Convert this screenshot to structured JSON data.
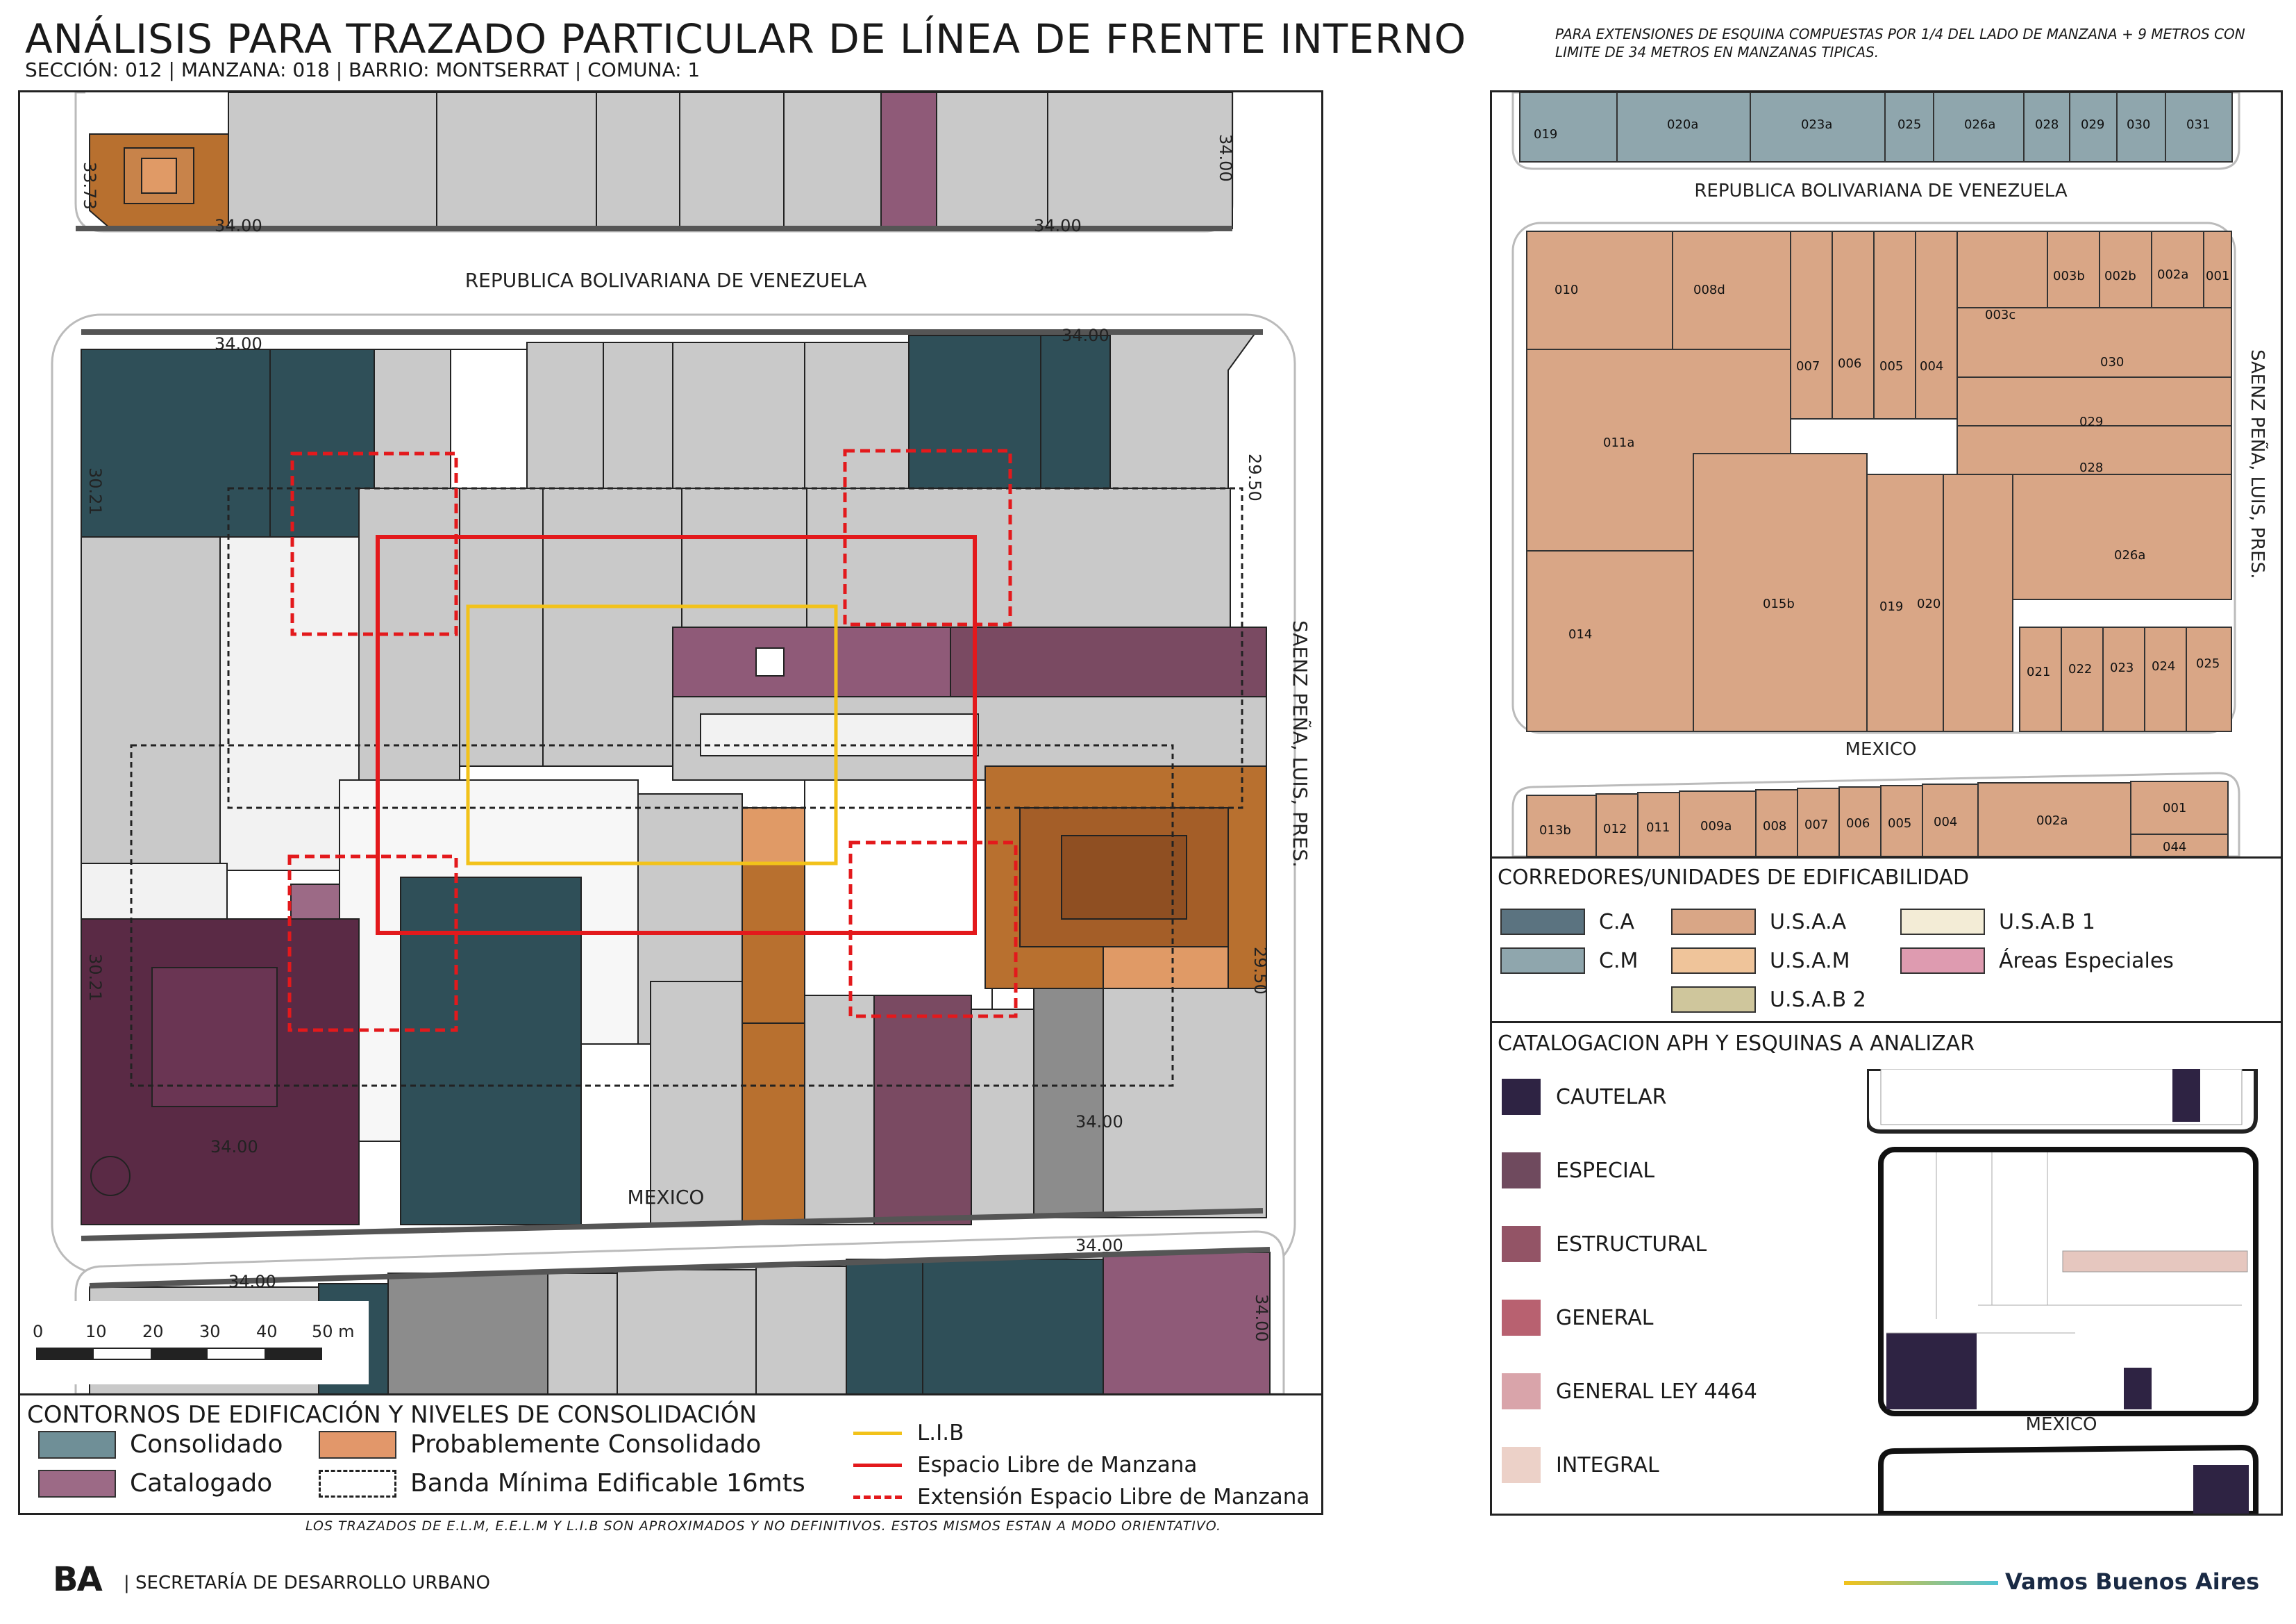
{
  "header": {
    "title": "ANÁLISIS PARA TRAZADO PARTICULAR DE LÍNEA DE FRENTE INTERNO",
    "subtitle": "SECCIÓN: 012 |  MANZANA: 018 | BARRIO: MONTSERRAT | COMUNA: 1",
    "note": "PARA EXTENSIONES DE ESQUINA COMPUESTAS POR 1/4 DEL LADO DE MANZANA + 9 METROS CON LIMITE DE 34 METROS EN MANZANAS TIPICAS."
  },
  "main_map": {
    "streets": {
      "top": "REPUBLICA BOLIVARIANA DE VENEZUELA",
      "bottom": "MEXICO",
      "right": "SAENZ PEÑA, LUIS, PRES."
    },
    "dimensions": {
      "top_block_left": "33.73",
      "top_block_bottom_left": "34.00",
      "top_block_bottom_right": "34.00",
      "top_block_right": "34.00",
      "main_top_left": "34.00",
      "main_top_right": "34.00",
      "main_left_upper": "30.21",
      "main_left_lower": "30.21",
      "main_right_upper": "29.50",
      "main_right_lower": "29.50",
      "main_bottom_left": "34.00",
      "main_bottom_right": "34.00",
      "bottom_block_top_left": "34.00",
      "bottom_block_top_right": "34.00",
      "bottom_block_right": "34.00"
    },
    "scale": {
      "labels": [
        "0",
        "10",
        "20",
        "30",
        "40",
        "50 m"
      ]
    }
  },
  "legend_left": {
    "title": "CONTORNOS DE EDIFICACIÓN Y NIVELES DE CONSOLIDACIÓN",
    "items": [
      {
        "label": "Consolidado",
        "color": "#6f8f97"
      },
      {
        "label": "Probablemente Consolidado",
        "color": "#e2976a"
      },
      {
        "label": "Catalogado",
        "color": "#9c6a86"
      },
      {
        "label": "Banda Mínima Edificable 16mts",
        "color": "#ffffff"
      }
    ],
    "lines": [
      {
        "label": "L.I.B",
        "color": "#f2c21a"
      },
      {
        "label": "Espacio Libre de Manzana",
        "color": "#e3191c"
      },
      {
        "label": "Extensión Espacio Libre de Manzana",
        "color": "#e3191c"
      }
    ]
  },
  "footer_note": "LOS TRAZADOS DE E.L.M, E.E.L.M Y L.I.B SON APROXIMADOS Y NO DEFINITIVOS. ESTOS MISMOS ESTAN A MODO ORIENTATIVO.",
  "right_map": {
    "streets": {
      "top": "REPUBLICA BOLIVARIANA DE VENEZUELA",
      "bottom": "MEXICO",
      "right": "SAENZ PEÑA, LUIS, PRES."
    },
    "top_parcels": [
      "019",
      "020a",
      "023a",
      "025",
      "026a",
      "028",
      "029",
      "030",
      "031"
    ],
    "main_parcels": [
      "010",
      "008d",
      "007",
      "006",
      "005",
      "004",
      "003c",
      "003b",
      "002b",
      "002a",
      "001",
      "030",
      "011a",
      "029",
      "028",
      "026a",
      "015b",
      "019",
      "020",
      "014",
      "021",
      "022",
      "023",
      "024",
      "025"
    ],
    "bottom_parcels": [
      "013b",
      "012",
      "011",
      "009a",
      "008",
      "007",
      "006",
      "005",
      "004",
      "002a",
      "001",
      "044"
    ]
  },
  "legend_corredores": {
    "title": "CORREDORES/UNIDADES DE EDIFICABILIDAD",
    "items": [
      {
        "label": "C.A",
        "color": "#5b7380"
      },
      {
        "label": "C.M",
        "color": "#8fa6ad"
      },
      {
        "label": "U.S.A.A",
        "color": "#d9a686"
      },
      {
        "label": "U.S.A.M",
        "color": "#efc49a"
      },
      {
        "label": "U.S.A.B 2",
        "color": "#cfc69c"
      },
      {
        "label": "U.S.A.B 1",
        "color": "#f3ecd6"
      },
      {
        "label": "Áreas Especiales",
        "color": "#de9bb0"
      }
    ]
  },
  "legend_catalog": {
    "title": "CATALOGACION APH Y ESQUINAS A ANALIZAR",
    "items": [
      {
        "label": "CAUTELAR",
        "color": "#2e2343"
      },
      {
        "label": "ESPECIAL",
        "color": "#6f4a5e"
      },
      {
        "label": "ESTRUCTURAL",
        "color": "#935466"
      },
      {
        "label": "GENERAL",
        "color": "#b86170"
      },
      {
        "label": "GENERAL LEY 4464",
        "color": "#d9a4aa"
      },
      {
        "label": "INTEGRAL",
        "color": "#ecd1c8"
      }
    ],
    "mini_street": "MEXICO"
  },
  "footer": {
    "logo": "BA",
    "org": "| SECRETARÍA DE DESARROLLO URBANO",
    "slogan": "Vamos Buenos Aires"
  }
}
